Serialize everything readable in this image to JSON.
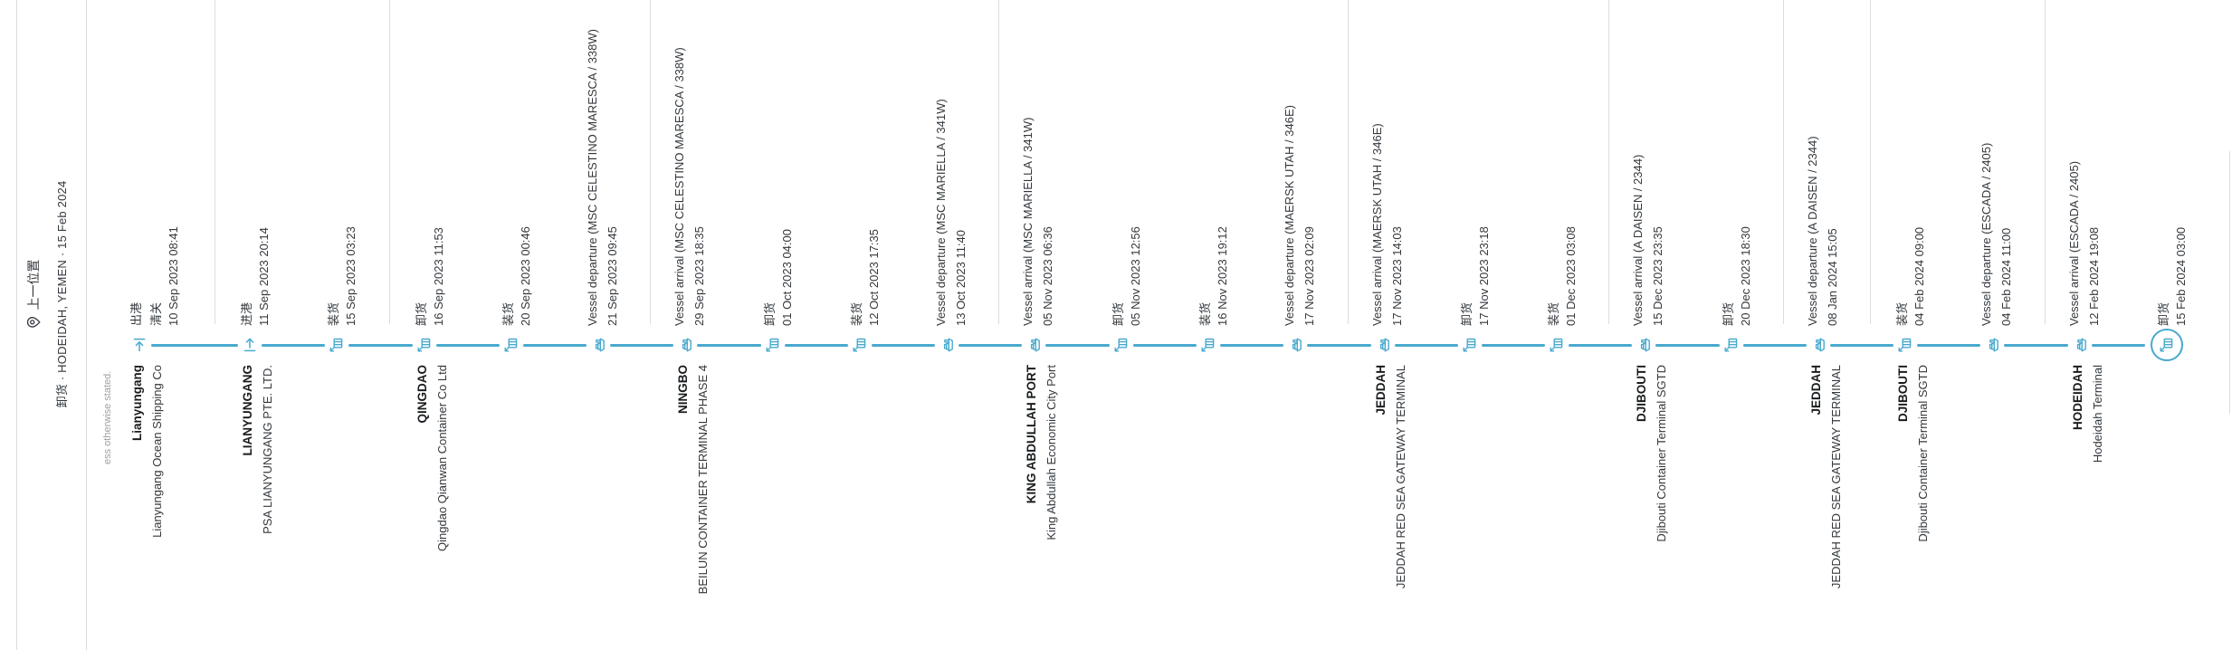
{
  "header": {
    "title": "上一位置",
    "subtitle": "卸货 · HODEIDAH, YEMEN · 15 Feb 2024"
  },
  "disclaimer": "ess otherwise stated.",
  "colors": {
    "accent": "#49a9ce",
    "text": "#33383d",
    "name_text": "#191c1f",
    "muted": "#9aa0a6",
    "separator": "#dadde0"
  },
  "timeline": {
    "groups": [
      {
        "location": "Lianyungang",
        "terminal": "Lianyungang Ocean Shipping Co",
        "events": [
          {
            "icon": "gate-out",
            "labels": [
              "出港",
              "清关"
            ],
            "date": "10 Sep 2023 08:41"
          }
        ]
      },
      {
        "location": "LIANYUNGANG",
        "terminal": "PSA LIANYUNGANG PTE. LTD.",
        "events": [
          {
            "icon": "gate-in",
            "labels": [
              "进港"
            ],
            "date": "11 Sep 2023 20:14"
          },
          {
            "icon": "crane",
            "labels": [
              "装货"
            ],
            "date": "15 Sep 2023 03:23"
          }
        ]
      },
      {
        "location": "QINGDAO",
        "terminal": "Qingdao Qianwan Container Co Ltd",
        "events": [
          {
            "icon": "crane",
            "labels": [
              "卸货"
            ],
            "date": "16 Sep 2023 11:53"
          },
          {
            "icon": "crane",
            "labels": [
              "装货"
            ],
            "date": "20 Sep 2023 00:46"
          },
          {
            "icon": "vessel",
            "labels": [
              "Vessel departure (MSC CELESTINO MARESCA / 338W)"
            ],
            "date": "21 Sep 2023 09:45"
          }
        ]
      },
      {
        "location": "NINGBO",
        "terminal": "BEILUN CONTAINER TERMINAL PHASE 4",
        "events": [
          {
            "icon": "vessel",
            "labels": [
              "Vessel arrival (MSC CELESTINO MARESCA / 338W)"
            ],
            "date": "29 Sep 2023 18:35"
          },
          {
            "icon": "crane",
            "labels": [
              "卸货"
            ],
            "date": "01 Oct 2023 04:00"
          },
          {
            "icon": "crane",
            "labels": [
              "装货"
            ],
            "date": "12 Oct 2023 17:35"
          },
          {
            "icon": "vessel",
            "labels": [
              "Vessel departure (MSC MARIELLA / 341W)"
            ],
            "date": "13 Oct 2023 11:40"
          }
        ]
      },
      {
        "location": "KING ABDULLAH PORT",
        "terminal": "King Abdullah Economic City Port",
        "events": [
          {
            "icon": "vessel",
            "labels": [
              "Vessel arrival (MSC MARIELLA / 341W)"
            ],
            "date": "05 Nov 2023 06:36"
          },
          {
            "icon": "crane",
            "labels": [
              "卸货"
            ],
            "date": "05 Nov 2023 12:56"
          },
          {
            "icon": "crane",
            "labels": [
              "装货"
            ],
            "date": "16 Nov 2023 19:12"
          },
          {
            "icon": "vessel",
            "labels": [
              "Vessel departure (MAERSK UTAH / 346E)"
            ],
            "date": "17 Nov 2023 02:09"
          }
        ]
      },
      {
        "location": "JEDDAH",
        "terminal": "JEDDAH RED SEA GATEWAY TERMINAL",
        "events": [
          {
            "icon": "vessel",
            "labels": [
              "Vessel arrival (MAERSK UTAH / 346E)"
            ],
            "date": "17 Nov 2023 14:03"
          },
          {
            "icon": "crane",
            "labels": [
              "卸货"
            ],
            "date": "17 Nov 2023 23:18"
          },
          {
            "icon": "crane",
            "labels": [
              "装货"
            ],
            "date": "01 Dec 2023 03:08"
          }
        ]
      },
      {
        "location": "DJIBOUTI",
        "terminal": "Djibouti Container Terminal SGTD",
        "events": [
          {
            "icon": "vessel",
            "labels": [
              "Vessel arrival (A DAISEN / 2344)"
            ],
            "date": "15 Dec 2023 23:35"
          },
          {
            "icon": "crane",
            "labels": [
              "卸货"
            ],
            "date": "20 Dec 2023 18:30"
          }
        ]
      },
      {
        "location": "JEDDAH",
        "terminal": "JEDDAH RED SEA GATEWAY TERMINAL",
        "events": [
          {
            "icon": "vessel",
            "labels": [
              "Vessel departure (A DAISEN / 2344)"
            ],
            "date": "08 Jan 2024 15:05"
          }
        ]
      },
      {
        "location": "DJIBOUTI",
        "terminal": "Djibouti Container Terminal SGTD",
        "events": [
          {
            "icon": "crane",
            "labels": [
              "装货"
            ],
            "date": "04 Feb 2024 09:00"
          },
          {
            "icon": "vessel",
            "labels": [
              "Vessel departure (ESCADA / 2405)"
            ],
            "date": "04 Feb 2024 11:00"
          }
        ]
      },
      {
        "location": "HODEIDAH",
        "terminal": "Hodeidah Terminal",
        "events": [
          {
            "icon": "vessel",
            "labels": [
              "Vessel arrival (ESCADA / 2405)"
            ],
            "date": "12 Feb 2024 19:08"
          },
          {
            "icon": "crane",
            "labels": [
              "卸货"
            ],
            "date": "15 Feb 2024 03:00",
            "current": true
          }
        ]
      }
    ]
  }
}
